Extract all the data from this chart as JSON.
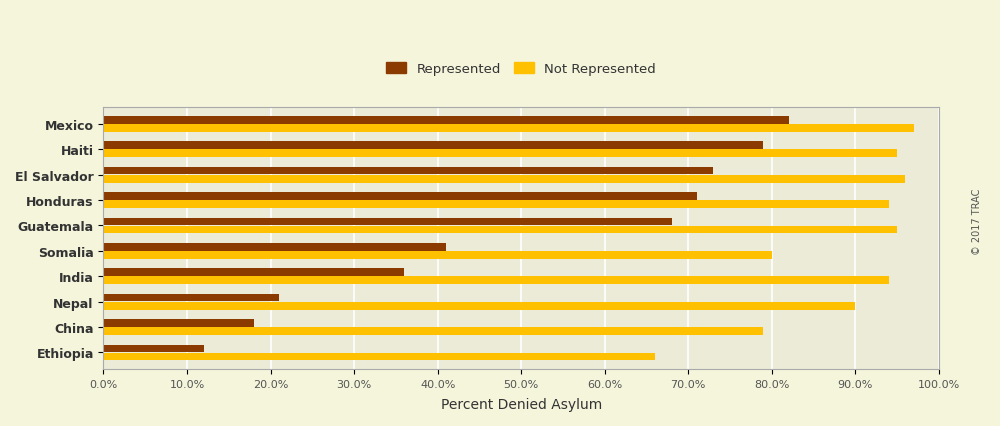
{
  "countries": [
    "Mexico",
    "Haiti",
    "El Salvador",
    "Honduras",
    "Guatemala",
    "Somalia",
    "India",
    "Nepal",
    "China",
    "Ethiopia"
  ],
  "represented": [
    82.0,
    79.0,
    73.0,
    71.0,
    68.0,
    41.0,
    36.0,
    21.0,
    18.0,
    12.0
  ],
  "not_represented": [
    97.0,
    95.0,
    96.0,
    94.0,
    95.0,
    80.0,
    94.0,
    90.0,
    79.0,
    66.0
  ],
  "color_represented": "#8B3A00",
  "color_not_represented": "#FFC000",
  "background_color": "#F5F5DC",
  "plot_bg_color": "#EBEBD8",
  "xlabel": "Percent Denied Asylum",
  "legend_represented": "Represented",
  "legend_not_represented": "Not Represented",
  "xlim": [
    0,
    100
  ],
  "xticks": [
    0,
    10,
    20,
    30,
    40,
    50,
    60,
    70,
    80,
    90,
    100
  ],
  "xtick_labels": [
    "0.0%",
    "10.0%",
    "20.0%",
    "30.0%",
    "40.0%",
    "50.0%",
    "60.0%",
    "70.0%",
    "80.0%",
    "90.0%",
    "100.0%"
  ],
  "watermark": "© 2017 TRAC",
  "bar_height": 0.3,
  "bar_gap": 0.02
}
